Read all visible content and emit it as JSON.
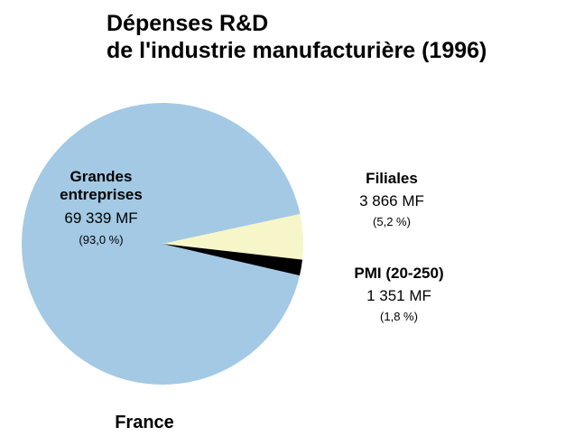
{
  "chart_data": {
    "type": "pie",
    "title": [
      "Dépenses R&D",
      "de l'industrie manufacturière (1996)"
    ],
    "categories": [
      "Grandes entreprises",
      "Filiales",
      "PMI (20-250)"
    ],
    "values": [
      69339,
      3866,
      1351
    ],
    "value_labels": [
      "69 339 MF",
      "3 866 MF",
      "1 351 MF"
    ],
    "percent": [
      93.0,
      5.2,
      1.8
    ],
    "percent_labels": [
      "(93,0 %)",
      "(5,2 %)",
      "(1,8 %)"
    ],
    "colors": [
      "#a3c9e4",
      "#f6f6c9",
      "#000000"
    ],
    "caption": "France"
  }
}
